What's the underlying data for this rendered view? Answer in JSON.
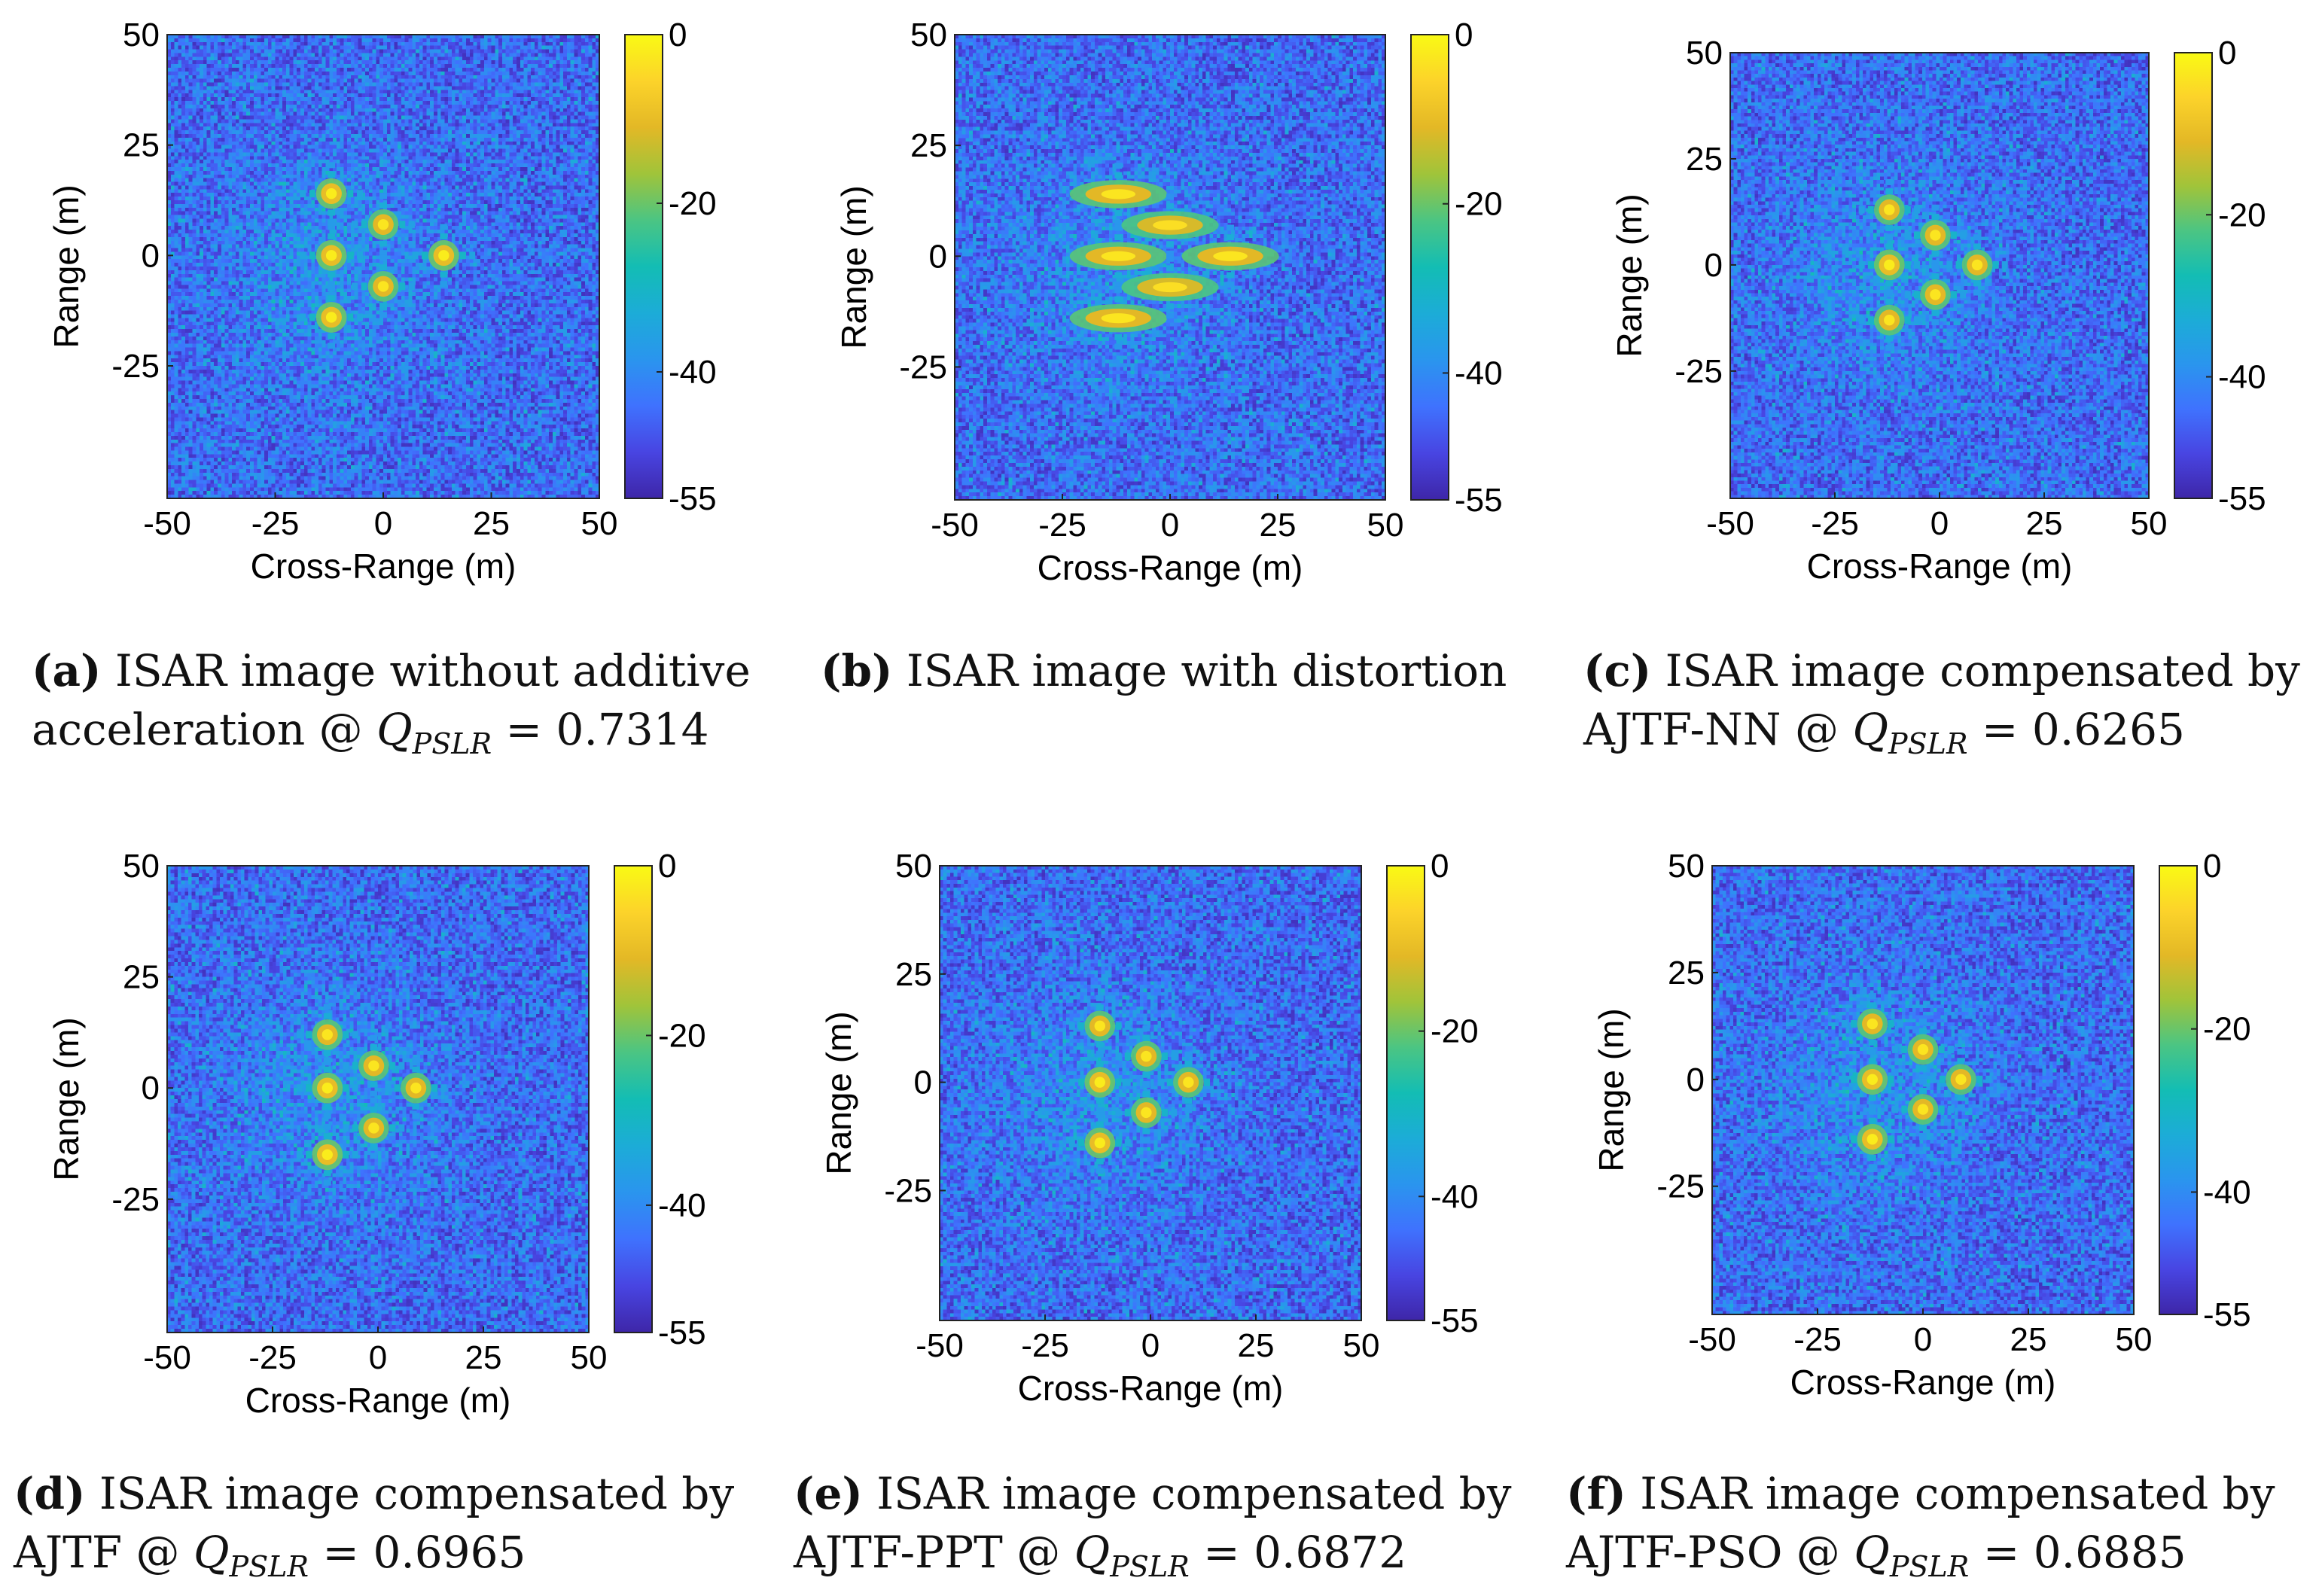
{
  "colorbar": {
    "ticks": [
      "0",
      "-20",
      "-40",
      "-55"
    ],
    "tick_values": [
      0,
      -20,
      -40,
      -55
    ],
    "range": [
      -55,
      0
    ],
    "colors": [
      "#3e26a8",
      "#4845e2",
      "#3f72fe",
      "#2a95ee",
      "#1cacd7",
      "#13bdb4",
      "#4bc583",
      "#a0c43a",
      "#e3b826",
      "#fcd32a",
      "#f9fa14"
    ],
    "noise_color": "#2d54c8",
    "background_floor_db": -45
  },
  "axes": {
    "xlabel": "Cross-Range (m)",
    "ylabel": "Range (m)",
    "xticks": [
      "-50",
      "-25",
      "0",
      "25",
      "50"
    ],
    "xtick_values": [
      -50,
      -25,
      0,
      25,
      50
    ],
    "yticks": [
      "50",
      "25",
      "0",
      "-25"
    ],
    "ytick_values": [
      50,
      25,
      0,
      -25
    ],
    "xlim": [
      -50,
      50
    ],
    "ylim": [
      -55,
      50
    ]
  },
  "chart_data": [
    {
      "type": "heatmap",
      "id": "a",
      "title": "ISAR image without additive acceleration",
      "xlabel": "Cross-Range (m)",
      "ylabel": "Range (m)",
      "colorbar_range_db": [
        -55,
        0
      ],
      "scatterers": [
        {
          "x": -12,
          "y": 14,
          "db": -2
        },
        {
          "x": -12,
          "y": 0,
          "db": -2
        },
        {
          "x": -12,
          "y": -14,
          "db": -2
        },
        {
          "x": 0,
          "y": 7,
          "db": -3
        },
        {
          "x": 0,
          "y": -7,
          "db": -3
        },
        {
          "x": 14,
          "y": 0,
          "db": -2
        }
      ]
    },
    {
      "type": "heatmap",
      "id": "b",
      "title": "ISAR image with distortion",
      "xlabel": "Cross-Range (m)",
      "ylabel": "Range (m)",
      "colorbar_range_db": [
        -55,
        0
      ],
      "scatterers": [
        {
          "x": -12,
          "y": 14,
          "db": -3
        },
        {
          "x": -12,
          "y": 0,
          "db": -3
        },
        {
          "x": -12,
          "y": -14,
          "db": -3
        },
        {
          "x": 0,
          "y": 7,
          "db": -4
        },
        {
          "x": 0,
          "y": -7,
          "db": -4
        },
        {
          "x": 14,
          "y": 0,
          "db": -3
        }
      ]
    },
    {
      "type": "heatmap",
      "id": "c",
      "title": "ISAR image compensated by AJTF-NN",
      "xlabel": "Cross-Range (m)",
      "ylabel": "Range (m)",
      "colorbar_range_db": [
        -55,
        0
      ],
      "scatterers": [
        {
          "x": -12,
          "y": 13,
          "db": -3
        },
        {
          "x": -12,
          "y": 0,
          "db": -2
        },
        {
          "x": -12,
          "y": -13,
          "db": -3
        },
        {
          "x": -1,
          "y": 7,
          "db": -3
        },
        {
          "x": -1,
          "y": -7,
          "db": -3
        },
        {
          "x": 9,
          "y": 0,
          "db": -3
        }
      ]
    },
    {
      "type": "heatmap",
      "id": "d",
      "title": "ISAR image compensated by AJTF",
      "xlabel": "Cross-Range (m)",
      "ylabel": "Range (m)",
      "colorbar_range_db": [
        -55,
        0
      ],
      "scatterers": [
        {
          "x": -12,
          "y": 12,
          "db": -3
        },
        {
          "x": -12,
          "y": 0,
          "db": -2
        },
        {
          "x": -12,
          "y": -15,
          "db": -2
        },
        {
          "x": -1,
          "y": 5,
          "db": -3
        },
        {
          "x": -1,
          "y": -9,
          "db": -3
        },
        {
          "x": 9,
          "y": 0,
          "db": -3
        }
      ]
    },
    {
      "type": "heatmap",
      "id": "e",
      "title": "ISAR image compensated by AJTF-PPT",
      "xlabel": "Cross-Range (m)",
      "ylabel": "Range (m)",
      "colorbar_range_db": [
        -55,
        0
      ],
      "scatterers": [
        {
          "x": -12,
          "y": 13,
          "db": -3
        },
        {
          "x": -12,
          "y": 0,
          "db": -2
        },
        {
          "x": -12,
          "y": -14,
          "db": -2
        },
        {
          "x": -1,
          "y": 6,
          "db": -3
        },
        {
          "x": -1,
          "y": -7,
          "db": -3
        },
        {
          "x": 9,
          "y": 0,
          "db": -3
        }
      ]
    },
    {
      "type": "heatmap",
      "id": "f",
      "title": "ISAR image compensated by AJTF-PSO",
      "xlabel": "Cross-Range (m)",
      "ylabel": "Range (m)",
      "colorbar_range_db": [
        -55,
        0
      ],
      "scatterers": [
        {
          "x": -12,
          "y": 13,
          "db": -3
        },
        {
          "x": -12,
          "y": 0,
          "db": -2
        },
        {
          "x": -12,
          "y": -14,
          "db": -2
        },
        {
          "x": 0,
          "y": 7,
          "db": -3
        },
        {
          "x": 0,
          "y": -7,
          "db": -3
        },
        {
          "x": 9,
          "y": 0,
          "db": -3
        }
      ]
    }
  ],
  "captions": {
    "a": {
      "label": "(a)",
      "line1": "ISAR image without additive",
      "line2": "acceleration @",
      "q_symbol": "Q",
      "q_sub": "PSLR",
      "q_value": "= 0.7314"
    },
    "b": {
      "label": "(b)",
      "line1": "ISAR image with distortion"
    },
    "c": {
      "label": "(c)",
      "line1": "ISAR image compensated by",
      "line2": "AJTF-NN @",
      "q_symbol": "Q",
      "q_sub": "PSLR",
      "q_value": "= 0.6265"
    },
    "d": {
      "label": "(d)",
      "line1": "ISAR image compensated by",
      "line2": "AJTF @",
      "q_symbol": "Q",
      "q_sub": "PSLR",
      "q_value": "= 0.6965"
    },
    "e": {
      "label": "(e)",
      "line1": "ISAR image compensated by",
      "line2": "AJTF-PPT @",
      "q_symbol": "Q",
      "q_sub": "PSLR",
      "q_value": "= 0.6872"
    },
    "f": {
      "label": "(f)",
      "line1": "ISAR image compensated by",
      "line2": "AJTF-PSO @",
      "q_symbol": "Q",
      "q_sub": "PSLR",
      "q_value": "= 0.6885"
    }
  }
}
